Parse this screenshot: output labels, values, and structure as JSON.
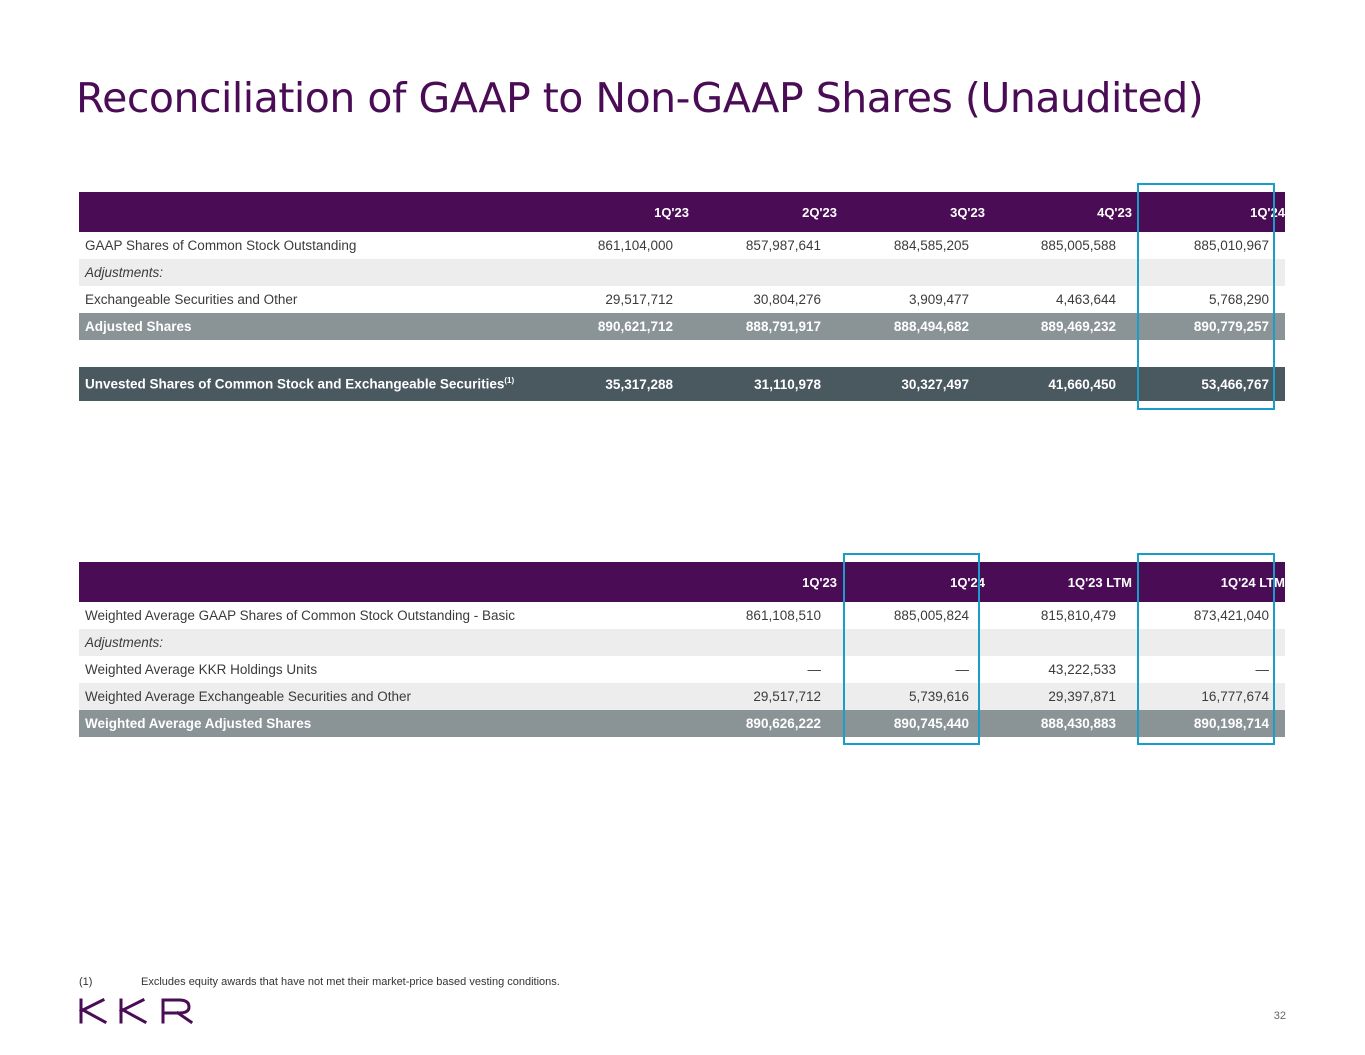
{
  "title": "Reconciliation of GAAP to Non-GAAP Shares (Unaudited)",
  "table1": {
    "headers": [
      "1Q'23",
      "2Q'23",
      "3Q'23",
      "4Q'23",
      "1Q'24"
    ],
    "rows": [
      {
        "label": "GAAP Shares of Common Stock Outstanding",
        "values": [
          "861,104,000",
          "857,987,641",
          "884,585,205",
          "885,005,588",
          "885,010,967"
        ]
      },
      {
        "label": "Adjustments:",
        "values": [
          "",
          "",
          "",
          "",
          ""
        ]
      },
      {
        "label": "Exchangeable Securities and Other",
        "values": [
          "29,517,712",
          "30,804,276",
          "3,909,477",
          "4,463,644",
          "5,768,290"
        ]
      },
      {
        "label": "Adjusted Shares",
        "values": [
          "890,621,712",
          "888,791,917",
          "888,494,682",
          "889,469,232",
          "890,779,257"
        ]
      },
      {
        "label": "Unvested Shares of Common Stock and Exchangeable Securities",
        "superscript": "(1)",
        "values": [
          "35,317,288",
          "31,110,978",
          "30,327,497",
          "41,660,450",
          "53,466,767"
        ]
      }
    ]
  },
  "table2": {
    "headers": [
      "1Q'23",
      "1Q'24",
      "1Q'23 LTM",
      "1Q'24 LTM"
    ],
    "rows": [
      {
        "label": "Weighted Average GAAP Shares of Common Stock Outstanding - Basic",
        "values": [
          "861,108,510",
          "885,005,824",
          "815,810,479",
          "873,421,040"
        ]
      },
      {
        "label": "Adjustments:",
        "values": [
          "",
          "",
          "",
          ""
        ]
      },
      {
        "label": "Weighted Average KKR Holdings Units",
        "values": [
          "—",
          "—",
          "43,222,533",
          "—"
        ]
      },
      {
        "label": "Weighted Average Exchangeable Securities and Other",
        "values": [
          "29,517,712",
          "5,739,616",
          "29,397,871",
          "16,777,674"
        ]
      },
      {
        "label": "Weighted Average Adjusted Shares",
        "values": [
          "890,626,222",
          "890,745,440",
          "888,430,883",
          "890,198,714"
        ]
      }
    ]
  },
  "footnote": {
    "marker": "(1)",
    "text": "Excludes equity awards that have not met their market-price based vesting conditions."
  },
  "logo_text": "KKR",
  "page_number": "32",
  "colors": {
    "brand_purple": "#4a0d55",
    "adjusted_gray": "#8a9396",
    "dark_slate": "#4a5860",
    "highlight_blue": "#1a9ec9",
    "stripe": "#ededed"
  }
}
